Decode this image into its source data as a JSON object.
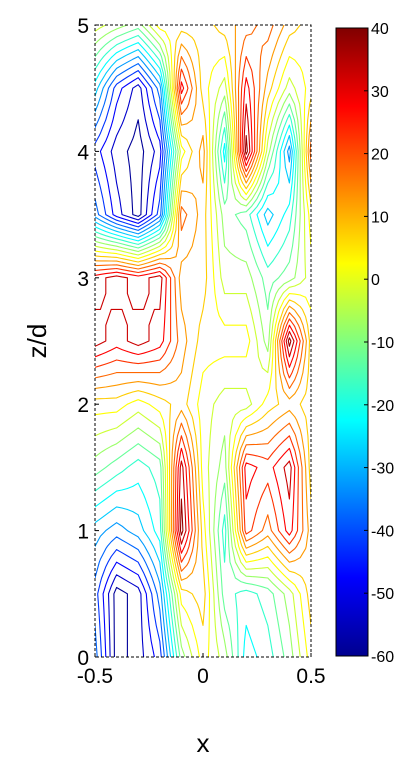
{
  "chart_data": {
    "type": "heatmap",
    "subtype": "contour",
    "title": "",
    "xlabel": "x",
    "ylabel": "z/d",
    "xlim": [
      -0.5,
      0.5
    ],
    "ylim": [
      0,
      5
    ],
    "x_ticks": [
      -0.5,
      0,
      0.5
    ],
    "x_tick_labels": [
      "-0.5",
      "0",
      "0.5"
    ],
    "y_ticks": [
      0,
      1,
      2,
      3,
      4,
      5
    ],
    "y_tick_labels": [
      "0",
      "1",
      "2",
      "3",
      "4",
      "5"
    ],
    "colorbar": {
      "colormap": "jet",
      "range": [
        -60,
        40
      ],
      "ticks": [
        40,
        30,
        20,
        10,
        0,
        -10,
        -20,
        -30,
        -40,
        -50,
        -60
      ],
      "tick_labels": [
        "40",
        "30",
        "20",
        "10",
        "0",
        "-10",
        "-20",
        "-30",
        "-40",
        "-50",
        "-60"
      ]
    },
    "x": [
      -0.5,
      -0.4,
      -0.3,
      -0.2,
      -0.1,
      0.0,
      0.1,
      0.2,
      0.3,
      0.4,
      0.5
    ],
    "y": [
      0.0,
      0.5,
      1.0,
      1.5,
      2.0,
      2.5,
      3.0,
      3.5,
      4.0,
      4.5,
      5.0
    ],
    "z": [
      [
        -35,
        -60,
        -55,
        -45,
        -10,
        5,
        -5,
        -25,
        -20,
        -10,
        5
      ],
      [
        -40,
        -60,
        -55,
        -35,
        5,
        10,
        -15,
        -20,
        -15,
        -5,
        10
      ],
      [
        -30,
        -35,
        -30,
        -20,
        40,
        5,
        -20,
        25,
        15,
        30,
        10
      ],
      [
        -10,
        -15,
        -20,
        -15,
        35,
        0,
        -10,
        30,
        25,
        35,
        5
      ],
      [
        5,
        5,
        0,
        5,
        10,
        0,
        -5,
        -5,
        5,
        10,
        5
      ],
      [
        35,
        30,
        35,
        30,
        15,
        5,
        5,
        5,
        -10,
        40,
        5
      ],
      [
        30,
        35,
        30,
        35,
        10,
        10,
        -5,
        -5,
        -15,
        -10,
        0
      ],
      [
        -35,
        -50,
        -60,
        -40,
        20,
        10,
        -10,
        -15,
        -30,
        -20,
        5
      ],
      [
        -45,
        -55,
        -60,
        -50,
        0,
        15,
        -25,
        40,
        -5,
        -35,
        20
      ],
      [
        -25,
        -45,
        -55,
        -35,
        30,
        5,
        -5,
        30,
        10,
        -5,
        5
      ],
      [
        0,
        -5,
        -10,
        5,
        5,
        5,
        10,
        15,
        20,
        10,
        5
      ]
    ]
  }
}
